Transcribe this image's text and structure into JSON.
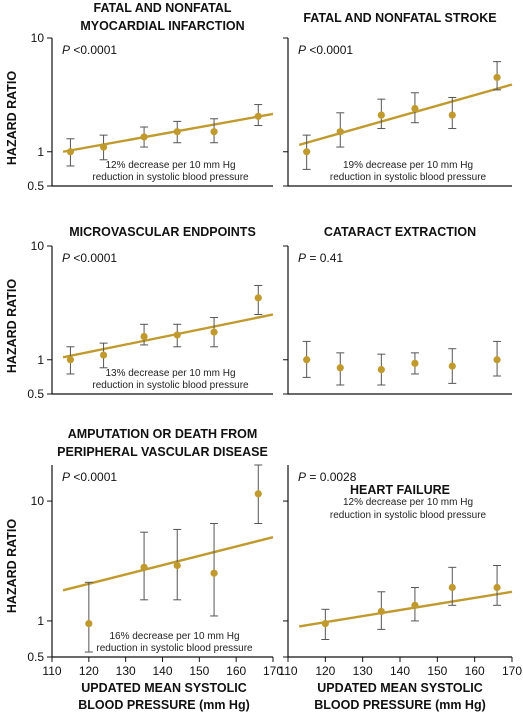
{
  "figure": {
    "ylabel": "HAZARD RATIO",
    "xlabel_line1": "UPDATED MEAN SYSTOLIC",
    "xlabel_line2": "BLOOD PRESSURE (mm Hg)",
    "colors": {
      "line": "#c19a2e",
      "point": "#c19a2e",
      "error": "#555555",
      "axis": "#111111"
    }
  },
  "chart_data": [
    {
      "type": "scatter",
      "title_lines": [
        "FATAL AND NONFATAL",
        "MYOCARDIAL INFARCTION"
      ],
      "p_label": "P",
      "p_value": " <0.0001",
      "note_lines": [
        "12% decrease per 10 mm Hg",
        "reduction in systolic blood pressure"
      ],
      "y_scale": "log",
      "ylim": [
        0.5,
        10
      ],
      "yticks": [
        "10",
        "1",
        "0.5"
      ],
      "xlim": [
        110,
        170
      ],
      "x": [
        115,
        124,
        135,
        144,
        154,
        166
      ],
      "y": [
        1.0,
        1.1,
        1.35,
        1.5,
        1.5,
        2.05
      ],
      "err_low": [
        0.75,
        0.85,
        1.1,
        1.2,
        1.2,
        1.7
      ],
      "err_high": [
        1.3,
        1.4,
        1.65,
        1.85,
        1.95,
        2.6
      ],
      "fit": [
        [
          113,
          1.0
        ],
        [
          170,
          2.15
        ]
      ]
    },
    {
      "type": "scatter",
      "title_lines": [
        "FATAL AND NONFATAL STROKE"
      ],
      "p_label": "P",
      "p_value": " <0.0001",
      "note_lines": [
        "19% decrease per 10 mm Hg",
        "reduction in systolic blood pressure"
      ],
      "y_scale": "log",
      "ylim": [
        0.5,
        10
      ],
      "yticks": [],
      "xlim": [
        110,
        170
      ],
      "x": [
        115,
        124,
        135,
        144,
        154,
        166
      ],
      "y": [
        1.0,
        1.5,
        2.1,
        2.4,
        2.1,
        4.5
      ],
      "err_low": [
        0.7,
        1.1,
        1.6,
        1.8,
        1.6,
        3.5
      ],
      "err_high": [
        1.4,
        2.2,
        2.9,
        3.3,
        3.0,
        6.2
      ],
      "fit": [
        [
          113,
          1.15
        ],
        [
          170,
          3.9
        ]
      ]
    },
    {
      "type": "scatter",
      "title_lines": [
        "MICROVASCULAR ENDPOINTS"
      ],
      "p_label": "P",
      "p_value": " <0.0001",
      "note_lines": [
        "13% decrease per 10 mm Hg",
        "reduction in systolic blood pressure"
      ],
      "y_scale": "log",
      "ylim": [
        0.5,
        10
      ],
      "yticks": [
        "10",
        "1",
        "0.5"
      ],
      "xlim": [
        110,
        170
      ],
      "x": [
        115,
        124,
        135,
        144,
        154,
        166
      ],
      "y": [
        1.0,
        1.1,
        1.6,
        1.65,
        1.75,
        3.5
      ],
      "err_low": [
        0.75,
        0.85,
        1.35,
        1.3,
        1.3,
        2.5
      ],
      "err_high": [
        1.3,
        1.4,
        2.05,
        2.05,
        2.35,
        4.5
      ],
      "fit": [
        [
          113,
          1.05
        ],
        [
          170,
          2.5
        ]
      ]
    },
    {
      "type": "scatter",
      "title_lines": [
        "CATARACT EXTRACTION"
      ],
      "p_label": "P",
      "p_value": " = 0.41",
      "note_lines": [],
      "y_scale": "log",
      "ylim": [
        0.5,
        10
      ],
      "yticks": [],
      "xlim": [
        110,
        170
      ],
      "x": [
        115,
        124,
        135,
        144,
        154,
        166
      ],
      "y": [
        1.0,
        0.85,
        0.82,
        0.93,
        0.88,
        1.0
      ],
      "err_low": [
        0.7,
        0.6,
        0.6,
        0.75,
        0.62,
        0.72
      ],
      "err_high": [
        1.45,
        1.15,
        1.12,
        1.15,
        1.25,
        1.45
      ],
      "fit": []
    },
    {
      "type": "scatter",
      "title_lines": [
        "AMPUTATION OR DEATH FROM",
        "PERIPHERAL VASCULAR DISEASE"
      ],
      "p_label": "P",
      "p_value": " <0.0001",
      "note_lines": [
        "16% decrease per 10 mm Hg",
        "reduction in systolic blood pressure"
      ],
      "y_scale": "log",
      "ylim": [
        0.5,
        20
      ],
      "yticks": [
        "10",
        "1",
        "0.5"
      ],
      "xlim": [
        110,
        170
      ],
      "xticks": [
        "110",
        "120",
        "130",
        "140",
        "150",
        "160",
        "170"
      ],
      "x": [
        120,
        135,
        144,
        154,
        166
      ],
      "y": [
        0.95,
        2.8,
        2.9,
        2.5,
        11.5
      ],
      "err_low": [
        0.55,
        1.5,
        1.5,
        1.1,
        6.5
      ],
      "err_high": [
        2.1,
        5.5,
        5.8,
        6.5,
        20
      ],
      "fit": [
        [
          113,
          1.8
        ],
        [
          170,
          5.0
        ]
      ]
    },
    {
      "type": "scatter",
      "title_lines": [
        "HEART FAILURE"
      ],
      "p_label": "P",
      "p_value": " = 0.0028",
      "note_lines": [
        "12% decrease per 10 mm Hg",
        "reduction in systolic blood pressure"
      ],
      "y_scale": "log",
      "ylim": [
        0.5,
        20
      ],
      "yticks": [],
      "xlim": [
        110,
        170
      ],
      "xticks": [
        "110",
        "120",
        "130",
        "140",
        "150",
        "160",
        "170"
      ],
      "x": [
        120,
        135,
        144,
        154,
        166
      ],
      "y": [
        0.95,
        1.2,
        1.35,
        1.9,
        1.9
      ],
      "err_low": [
        0.7,
        0.85,
        1.0,
        1.35,
        1.35
      ],
      "err_high": [
        1.25,
        1.75,
        1.9,
        2.8,
        2.9
      ],
      "fit": [
        [
          113,
          0.9
        ],
        [
          170,
          1.75
        ]
      ]
    }
  ]
}
